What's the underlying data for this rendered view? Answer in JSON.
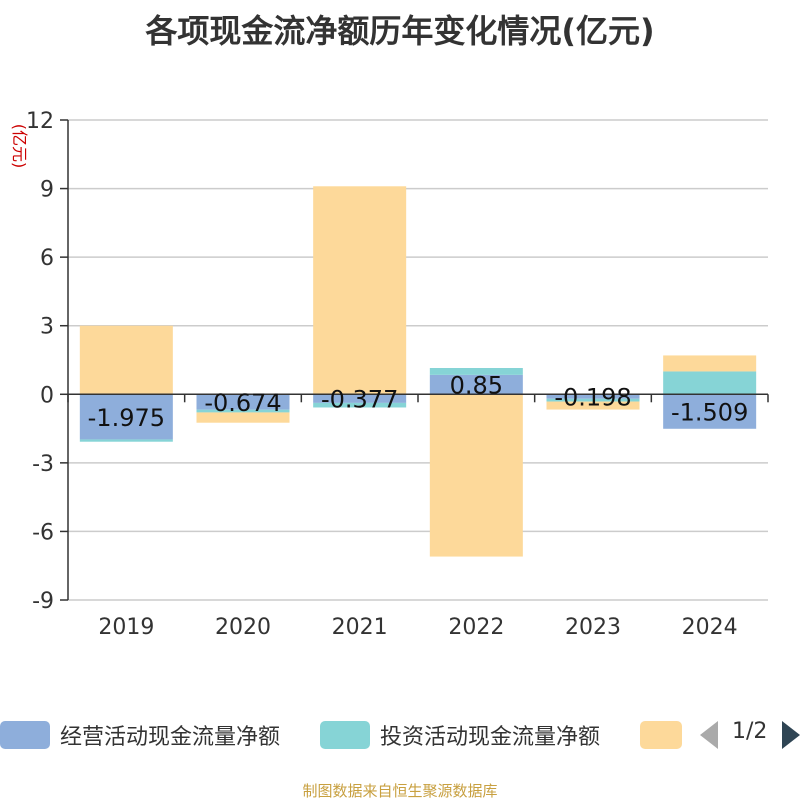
{
  "title": "各项现金流净额历年变化情况(亿元)",
  "source": "制图数据来自恒生聚源数据库",
  "legend": {
    "items": [
      {
        "label": "经营活动现金流量净额",
        "color": "#8eaedb"
      },
      {
        "label": "投资活动现金流量净额",
        "color": "#86d4d6"
      },
      {
        "label": "",
        "color": "#fdd99a"
      }
    ],
    "page": "1/2"
  },
  "chart_data": {
    "type": "bar",
    "stacked": true,
    "ylabel": "(亿元)",
    "ylim": [
      -9,
      12
    ],
    "yticks": [
      12,
      9,
      6,
      3,
      0,
      -3,
      -6,
      -9
    ],
    "grid": true,
    "categories": [
      "2019",
      "2020",
      "2021",
      "2022",
      "2023",
      "2024"
    ],
    "series": [
      {
        "name": "经营活动现金流量净额",
        "color": "#8eaedb",
        "values": [
          -1.975,
          -0.674,
          -0.377,
          0.85,
          -0.198,
          -1.509
        ],
        "labels": [
          "-1.975",
          "-0.674",
          "-0.377",
          "0.85",
          "-0.198",
          "-1.509"
        ]
      },
      {
        "name": "投资活动现金流量净额",
        "color": "#86d4d6",
        "values": [
          -0.1,
          -0.12,
          -0.2,
          0.3,
          -0.12,
          1.0
        ]
      },
      {
        "color": "#fdd99a",
        "values": [
          3.0,
          -0.45,
          9.1,
          -7.1,
          -0.35,
          0.7
        ]
      }
    ]
  }
}
